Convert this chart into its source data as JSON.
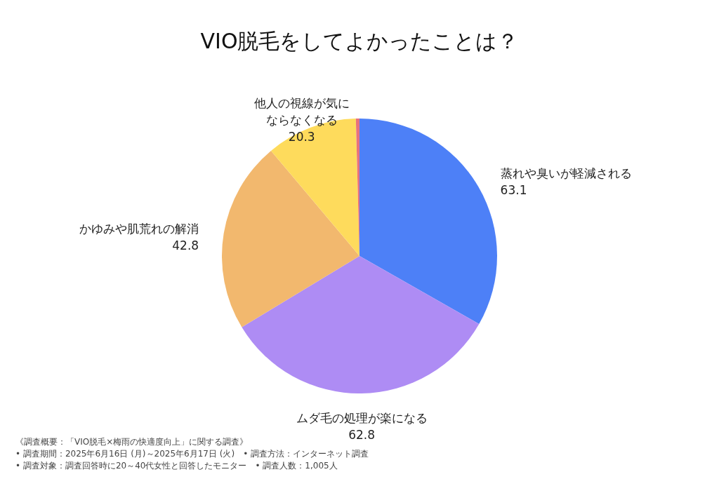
{
  "chart_data": {
    "type": "pie",
    "title": "VIO脱毛をしてよかったことは？",
    "categories": [
      "蒸れや臭いが軽減される",
      "ムダ毛の処理が楽になる",
      "かゆみや肌荒れの解消",
      "他人の視線が気にならなくなる",
      null
    ],
    "values": [
      63.1,
      62.8,
      42.8,
      20.3,
      0.8
    ],
    "value_labels": [
      "63.1",
      "62.8",
      "42.8",
      "20.3",
      null
    ],
    "colors": [
      "#4d80f7",
      "#ae8cf4",
      "#f2b86e",
      "#fedb5c",
      "#e8727c"
    ],
    "legend": false,
    "annotations": [
      "《調査概要：「VIO脱毛×梅雨の快適度向上」に関する調査》",
      "• 調査期間：2025年6月16日 (月)～2025年6月17日 (火)　• 調査方法：インターネット調査",
      "• 調査対象：調査回答時に20～40代女性と回答したモニター　• 調査人数：1,005人"
    ]
  }
}
